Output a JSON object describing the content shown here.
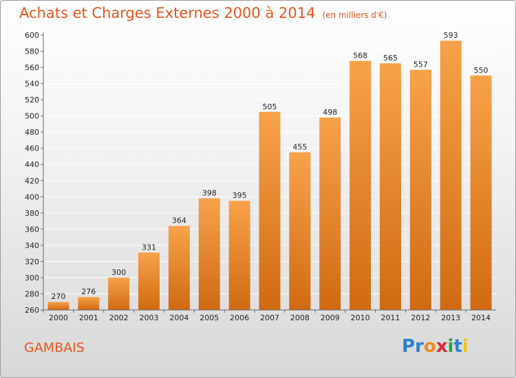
{
  "header": {
    "title": "Achats et Charges Externes 2000 à 2014",
    "subtitle": "(en milliers d'€)"
  },
  "footer": {
    "town": "GAMBAIS",
    "logo_letters": [
      {
        "ch": "P",
        "color": "#2b7fd2"
      },
      {
        "ch": "r",
        "color": "#2b7fd2"
      },
      {
        "ch": "o",
        "color": "#f08a1c"
      },
      {
        "ch": "x",
        "color": "#e0262b"
      },
      {
        "ch": "i",
        "color": "#2aa33e"
      },
      {
        "ch": "t",
        "color": "#2b7fd2"
      },
      {
        "ch": "i",
        "color": "#f0c21c"
      }
    ]
  },
  "chart_data": {
    "type": "bar",
    "title": "Achats et Charges Externes 2000 à 2014",
    "subtitle": "(en milliers d'€)",
    "categories": [
      "2000",
      "2001",
      "2002",
      "2003",
      "2004",
      "2005",
      "2006",
      "2007",
      "2008",
      "2009",
      "2010",
      "2011",
      "2012",
      "2013",
      "2014"
    ],
    "values": [
      270,
      276,
      300,
      331,
      364,
      398,
      395,
      505,
      455,
      498,
      568,
      565,
      557,
      593,
      550
    ],
    "ylim": [
      260,
      600
    ],
    "yticks": [
      260,
      280,
      300,
      320,
      340,
      360,
      380,
      400,
      420,
      440,
      460,
      480,
      500,
      520,
      540,
      560,
      580,
      600
    ],
    "grid": true,
    "colors": {
      "bar_top": "#f7a24a",
      "bar_bottom": "#d06a12",
      "grid": "#ffffff",
      "accent": "#e4541c"
    }
  }
}
